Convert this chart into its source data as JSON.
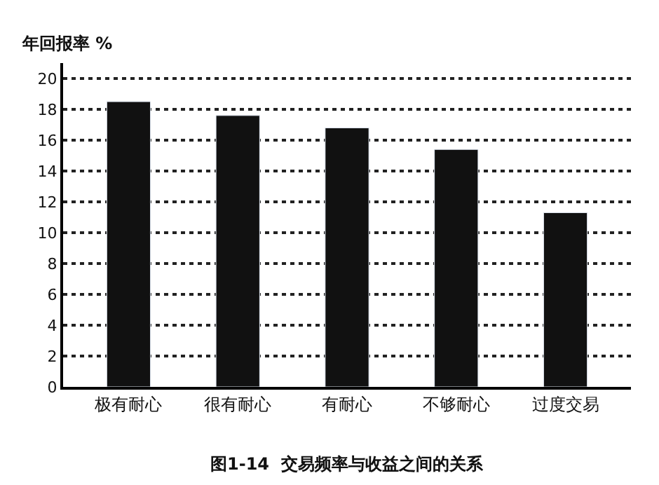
{
  "chart_data": {
    "type": "bar",
    "ylabel": "年回报率 %",
    "categories": [
      "极有耐心",
      "很有耐心",
      "有耐心",
      "不够耐心",
      "过度交易"
    ],
    "values": [
      18.5,
      17.6,
      16.8,
      15.4,
      11.3
    ],
    "color": "#111111",
    "ylim": [
      0,
      21
    ],
    "yticks": [
      0,
      2,
      4,
      6,
      8,
      10,
      12,
      14,
      16,
      18,
      20
    ],
    "grid": "y",
    "annotations": [
      "图1-14  交易频率与收益之间的关系"
    ]
  }
}
